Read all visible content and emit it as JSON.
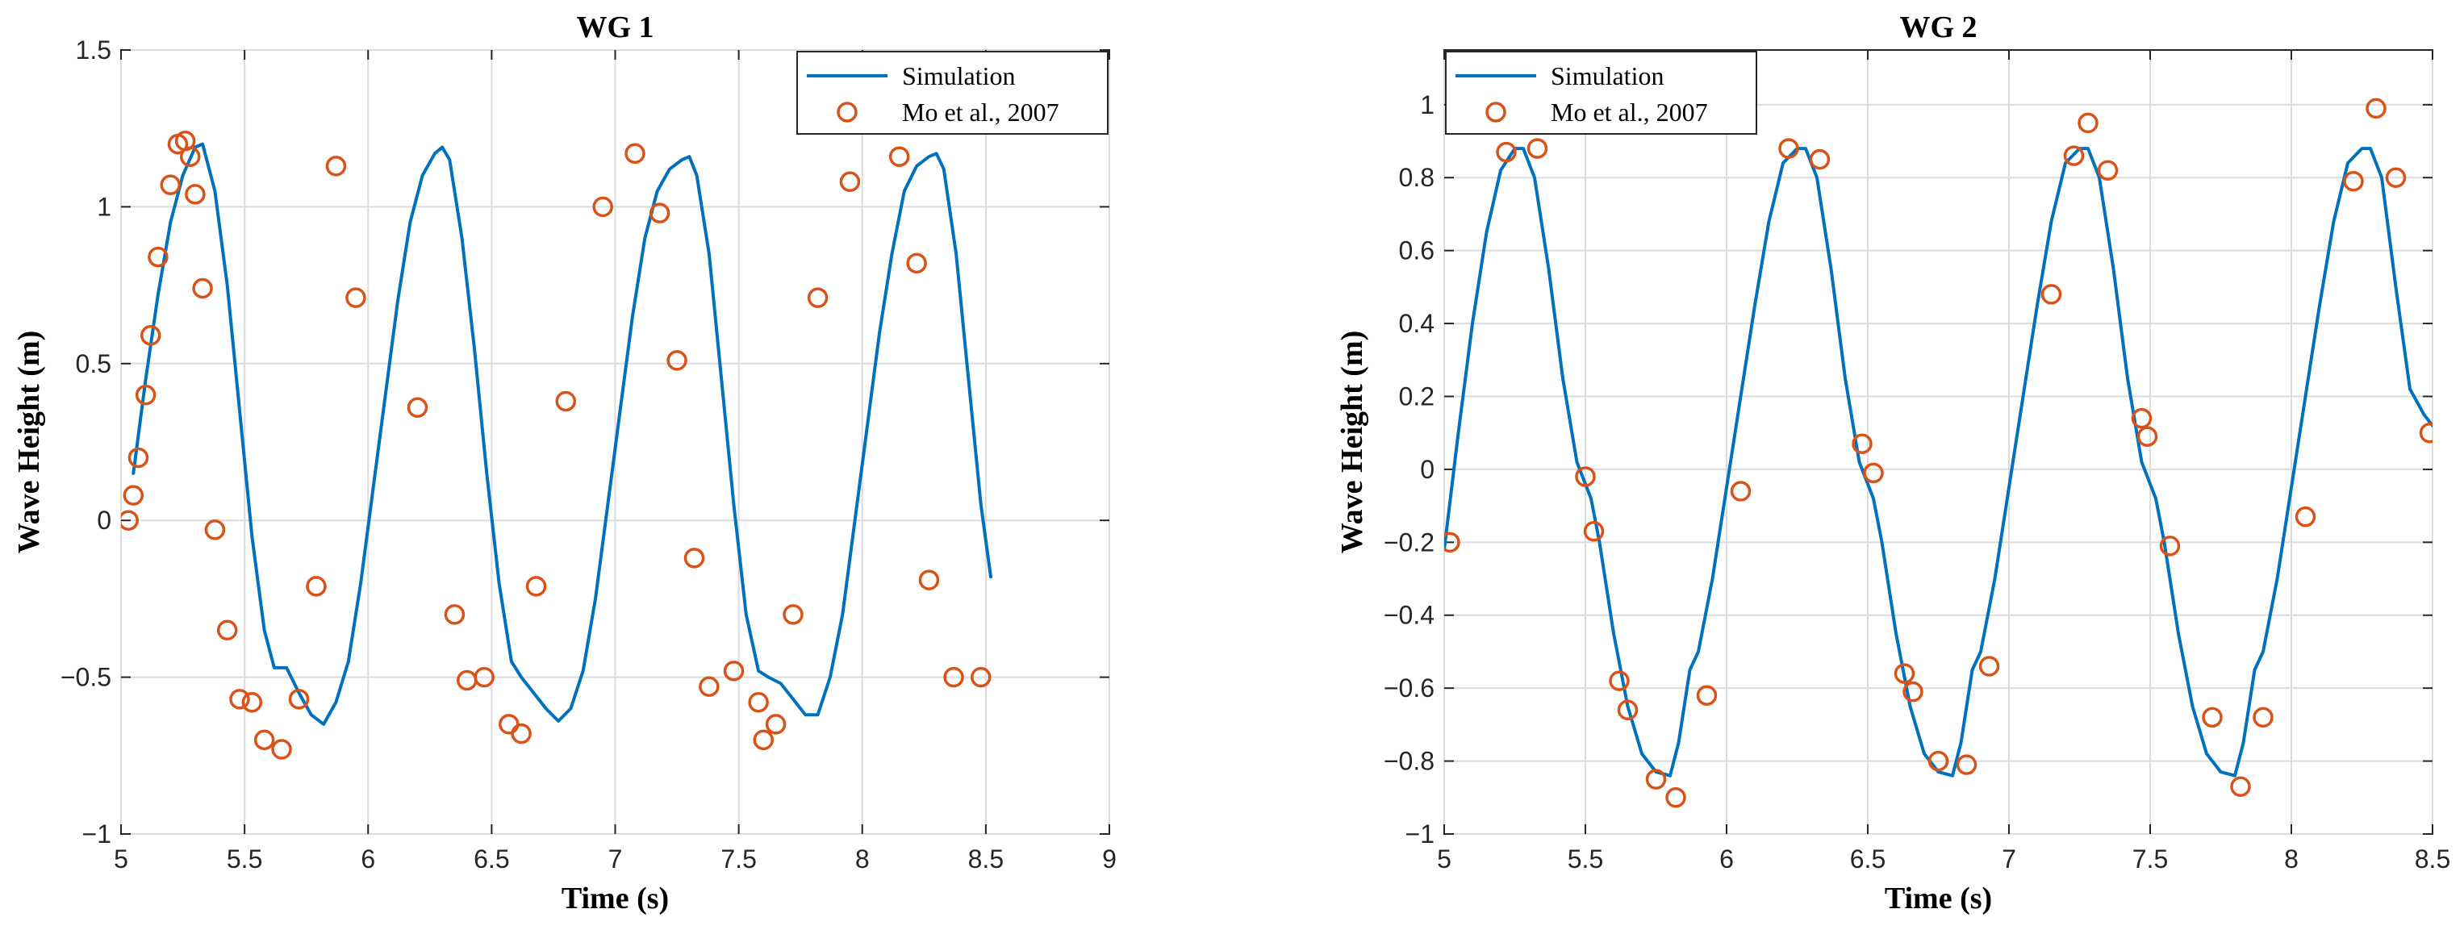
{
  "chart_data": [
    {
      "type": "line",
      "title": "WG 1",
      "xlabel": "Time (s)",
      "ylabel": "Wave Height (m)",
      "xlim": [
        5,
        9
      ],
      "ylim": [
        -1,
        1.5
      ],
      "xticks": [
        5,
        5.5,
        6,
        6.5,
        7,
        7.5,
        8,
        8.5,
        9
      ],
      "yticks": [
        -1,
        -0.5,
        0,
        0.5,
        1,
        1.5
      ],
      "xtick_labels": [
        "5",
        "5.5",
        "6",
        "6.5",
        "7",
        "7.5",
        "8",
        "8.5",
        "9"
      ],
      "ytick_labels": [
        "−1",
        "−0.5",
        "0",
        "0.5",
        "1",
        "1.5"
      ],
      "grid": true,
      "legend_position": "top-right",
      "series": [
        {
          "name": "Simulation",
          "kind": "line",
          "color": "#0072BD",
          "x": [
            5.05,
            5.1,
            5.15,
            5.2,
            5.25,
            5.3,
            5.33,
            5.38,
            5.43,
            5.48,
            5.53,
            5.58,
            5.62,
            5.67,
            5.72,
            5.77,
            5.82,
            5.87,
            5.92,
            5.97,
            6.02,
            6.07,
            6.12,
            6.17,
            6.22,
            6.27,
            6.3,
            6.33,
            6.38,
            6.43,
            6.48,
            6.53,
            6.58,
            6.62,
            6.67,
            6.72,
            6.77,
            6.82,
            6.87,
            6.92,
            6.97,
            7.02,
            7.07,
            7.12,
            7.17,
            7.22,
            7.27,
            7.3,
            7.33,
            7.38,
            7.43,
            7.48,
            7.53,
            7.58,
            7.62,
            7.67,
            7.72,
            7.77,
            7.82,
            7.87,
            7.92,
            7.97,
            8.02,
            8.07,
            8.12,
            8.17,
            8.22,
            8.27,
            8.3,
            8.33,
            8.38,
            8.43,
            8.48,
            8.52
          ],
          "y": [
            0.15,
            0.45,
            0.72,
            0.95,
            1.1,
            1.19,
            1.2,
            1.05,
            0.75,
            0.35,
            -0.05,
            -0.35,
            -0.47,
            -0.47,
            -0.55,
            -0.62,
            -0.65,
            -0.58,
            -0.45,
            -0.2,
            0.1,
            0.4,
            0.7,
            0.95,
            1.1,
            1.17,
            1.19,
            1.15,
            0.9,
            0.55,
            0.15,
            -0.2,
            -0.45,
            -0.5,
            -0.55,
            -0.6,
            -0.64,
            -0.6,
            -0.48,
            -0.25,
            0.05,
            0.35,
            0.65,
            0.9,
            1.05,
            1.12,
            1.15,
            1.16,
            1.1,
            0.85,
            0.45,
            0.05,
            -0.3,
            -0.48,
            -0.5,
            -0.52,
            -0.57,
            -0.62,
            -0.62,
            -0.5,
            -0.3,
            0.0,
            0.3,
            0.6,
            0.85,
            1.05,
            1.13,
            1.16,
            1.17,
            1.12,
            0.85,
            0.45,
            0.05,
            -0.18
          ]
        },
        {
          "name": "Mo et al., 2007",
          "kind": "marker",
          "color": "#D95319",
          "x": [
            5.03,
            5.05,
            5.07,
            5.1,
            5.12,
            5.15,
            5.2,
            5.23,
            5.26,
            5.28,
            5.3,
            5.33,
            5.38,
            5.43,
            5.48,
            5.53,
            5.58,
            5.65,
            5.72,
            5.79,
            5.87,
            5.95,
            6.2,
            6.35,
            6.4,
            6.47,
            6.57,
            6.62,
            6.68,
            6.8,
            6.95,
            7.08,
            7.18,
            7.25,
            7.32,
            7.38,
            7.48,
            7.58,
            7.6,
            7.65,
            7.72,
            7.82,
            7.95,
            8.15,
            8.22,
            8.27,
            8.37,
            8.48
          ],
          "y": [
            0.0,
            0.08,
            0.2,
            0.4,
            0.59,
            0.84,
            1.07,
            1.2,
            1.21,
            1.16,
            1.04,
            0.74,
            -0.03,
            -0.35,
            -0.57,
            -0.58,
            -0.7,
            -0.73,
            -0.57,
            -0.21,
            1.13,
            0.71,
            0.36,
            -0.3,
            -0.51,
            -0.5,
            -0.65,
            -0.68,
            -0.21,
            0.38,
            1.0,
            1.17,
            0.98,
            0.51,
            -0.12,
            -0.53,
            -0.48,
            -0.58,
            -0.7,
            -0.65,
            -0.3,
            0.71,
            1.08,
            1.16,
            0.82,
            -0.19,
            -0.5,
            -0.5
          ]
        }
      ]
    },
    {
      "type": "line",
      "title": "WG 2",
      "xlabel": "Time (s)",
      "ylabel": "Wave Height (m)",
      "xlim": [
        5,
        8.5
      ],
      "ylim": [
        -1,
        1.15
      ],
      "xticks": [
        5,
        5.5,
        6,
        6.5,
        7,
        7.5,
        8,
        8.5
      ],
      "yticks": [
        -1,
        -0.8,
        -0.6,
        -0.4,
        -0.2,
        0,
        0.2,
        0.4,
        0.6,
        0.8,
        1
      ],
      "xtick_labels": [
        "5",
        "5.5",
        "6",
        "6.5",
        "7",
        "7.5",
        "8",
        "8.5"
      ],
      "ytick_labels": [
        "−1",
        "−0.8",
        "−0.6",
        "−0.4",
        "−0.2",
        "0",
        "0.2",
        "0.4",
        "0.6",
        "0.8",
        "1"
      ],
      "grid": true,
      "legend_position": "top-left",
      "series": [
        {
          "name": "Simulation",
          "kind": "line",
          "color": "#0072BD",
          "x": [
            5.0,
            5.05,
            5.1,
            5.15,
            5.2,
            5.25,
            5.28,
            5.32,
            5.37,
            5.42,
            5.47,
            5.52,
            5.55,
            5.6,
            5.65,
            5.7,
            5.75,
            5.8,
            5.83,
            5.87,
            5.9,
            5.95,
            6.0,
            6.05,
            6.1,
            6.15,
            6.2,
            6.25,
            6.28,
            6.32,
            6.37,
            6.42,
            6.47,
            6.52,
            6.55,
            6.6,
            6.65,
            6.7,
            6.75,
            6.8,
            6.83,
            6.87,
            6.9,
            6.95,
            7.0,
            7.05,
            7.1,
            7.15,
            7.2,
            7.25,
            7.28,
            7.32,
            7.37,
            7.42,
            7.47,
            7.52,
            7.55,
            7.6,
            7.65,
            7.7,
            7.75,
            7.8,
            7.83,
            7.87,
            7.9,
            7.95,
            8.0,
            8.05,
            8.1,
            8.15,
            8.2,
            8.25,
            8.28,
            8.32,
            8.37,
            8.42,
            8.47,
            8.5
          ],
          "y": [
            -0.22,
            0.1,
            0.4,
            0.65,
            0.82,
            0.88,
            0.88,
            0.8,
            0.55,
            0.25,
            0.02,
            -0.08,
            -0.2,
            -0.45,
            -0.65,
            -0.78,
            -0.83,
            -0.84,
            -0.75,
            -0.55,
            -0.5,
            -0.3,
            -0.05,
            0.2,
            0.45,
            0.68,
            0.84,
            0.88,
            0.88,
            0.8,
            0.55,
            0.25,
            0.02,
            -0.08,
            -0.2,
            -0.45,
            -0.65,
            -0.78,
            -0.83,
            -0.84,
            -0.75,
            -0.55,
            -0.5,
            -0.3,
            -0.05,
            0.2,
            0.45,
            0.68,
            0.84,
            0.88,
            0.88,
            0.8,
            0.55,
            0.25,
            0.02,
            -0.08,
            -0.2,
            -0.45,
            -0.65,
            -0.78,
            -0.83,
            -0.84,
            -0.75,
            -0.55,
            -0.5,
            -0.3,
            -0.05,
            0.2,
            0.45,
            0.68,
            0.84,
            0.88,
            0.88,
            0.8,
            0.5,
            0.22,
            0.15,
            0.12
          ]
        },
        {
          "name": "Mo et al., 2007",
          "kind": "marker",
          "color": "#D95319",
          "x": [
            5.02,
            5.22,
            5.33,
            5.5,
            5.53,
            5.62,
            5.65,
            5.75,
            5.82,
            5.93,
            6.05,
            6.22,
            6.33,
            6.48,
            6.52,
            6.63,
            6.66,
            6.75,
            6.85,
            6.93,
            7.15,
            7.23,
            7.28,
            7.35,
            7.47,
            7.49,
            7.57,
            7.72,
            7.82,
            7.9,
            8.05,
            8.22,
            8.3,
            8.37,
            8.49
          ],
          "y": [
            -0.2,
            0.87,
            0.88,
            -0.02,
            -0.17,
            -0.58,
            -0.66,
            -0.85,
            -0.9,
            -0.62,
            -0.06,
            0.88,
            0.85,
            0.07,
            -0.01,
            -0.56,
            -0.61,
            -0.8,
            -0.81,
            -0.54,
            0.48,
            0.86,
            0.95,
            0.82,
            0.14,
            0.09,
            -0.21,
            -0.68,
            -0.87,
            -0.68,
            -0.13,
            0.79,
            0.99,
            0.8,
            0.1
          ]
        }
      ]
    }
  ]
}
